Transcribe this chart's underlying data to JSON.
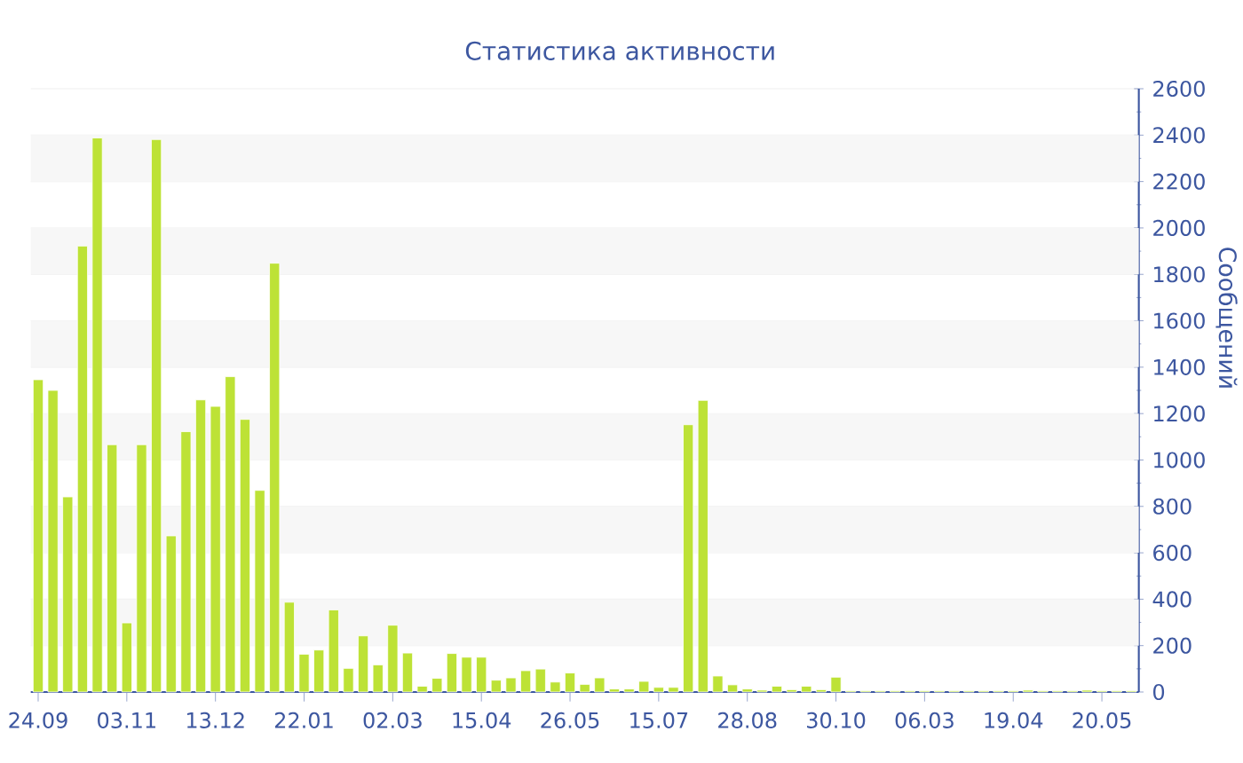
{
  "chart_data": {
    "type": "bar",
    "title": "Статистика активности",
    "ylabel": "Сообщений",
    "categories": [
      "24.09",
      null,
      null,
      null,
      null,
      null,
      "03.11",
      null,
      null,
      null,
      null,
      null,
      "13.12",
      null,
      null,
      null,
      null,
      null,
      "22.01",
      null,
      null,
      null,
      null,
      null,
      "02.03",
      null,
      null,
      null,
      null,
      null,
      "15.04",
      null,
      null,
      null,
      null,
      null,
      "26.05",
      null,
      null,
      null,
      null,
      null,
      "15.07",
      null,
      null,
      null,
      null,
      null,
      "28.08",
      null,
      null,
      null,
      null,
      null,
      "30.10",
      null,
      null,
      null,
      null,
      null,
      "06.03",
      null,
      null,
      null,
      null,
      null,
      "19.04",
      null,
      null,
      null,
      null,
      null,
      "20.05",
      null,
      null
    ],
    "values": [
      1346,
      1300,
      841,
      1922,
      2388,
      1066,
      298,
      1066,
      2381,
      673,
      1122,
      1259,
      1231,
      1359,
      1175,
      869,
      1848,
      387,
      163,
      181,
      354,
      102,
      242,
      117,
      288,
      168,
      25,
      59,
      166,
      150,
      150,
      51,
      61,
      92,
      99,
      43,
      82,
      33,
      61,
      13,
      13,
      46,
      20,
      20,
      1152,
      1257,
      69,
      31,
      13,
      8,
      25,
      10,
      25,
      10,
      64,
      5,
      5,
      5,
      5,
      5,
      5,
      5,
      5,
      5,
      5,
      5,
      5,
      8,
      5,
      5,
      5,
      8,
      5,
      5,
      5
    ],
    "color": "#bde236",
    "ylim": [
      0,
      2600
    ],
    "yticks": [
      0,
      200,
      400,
      600,
      800,
      1000,
      1200,
      1400,
      1600,
      1800,
      2000,
      2200,
      2400,
      2600
    ],
    "grid": "y"
  }
}
